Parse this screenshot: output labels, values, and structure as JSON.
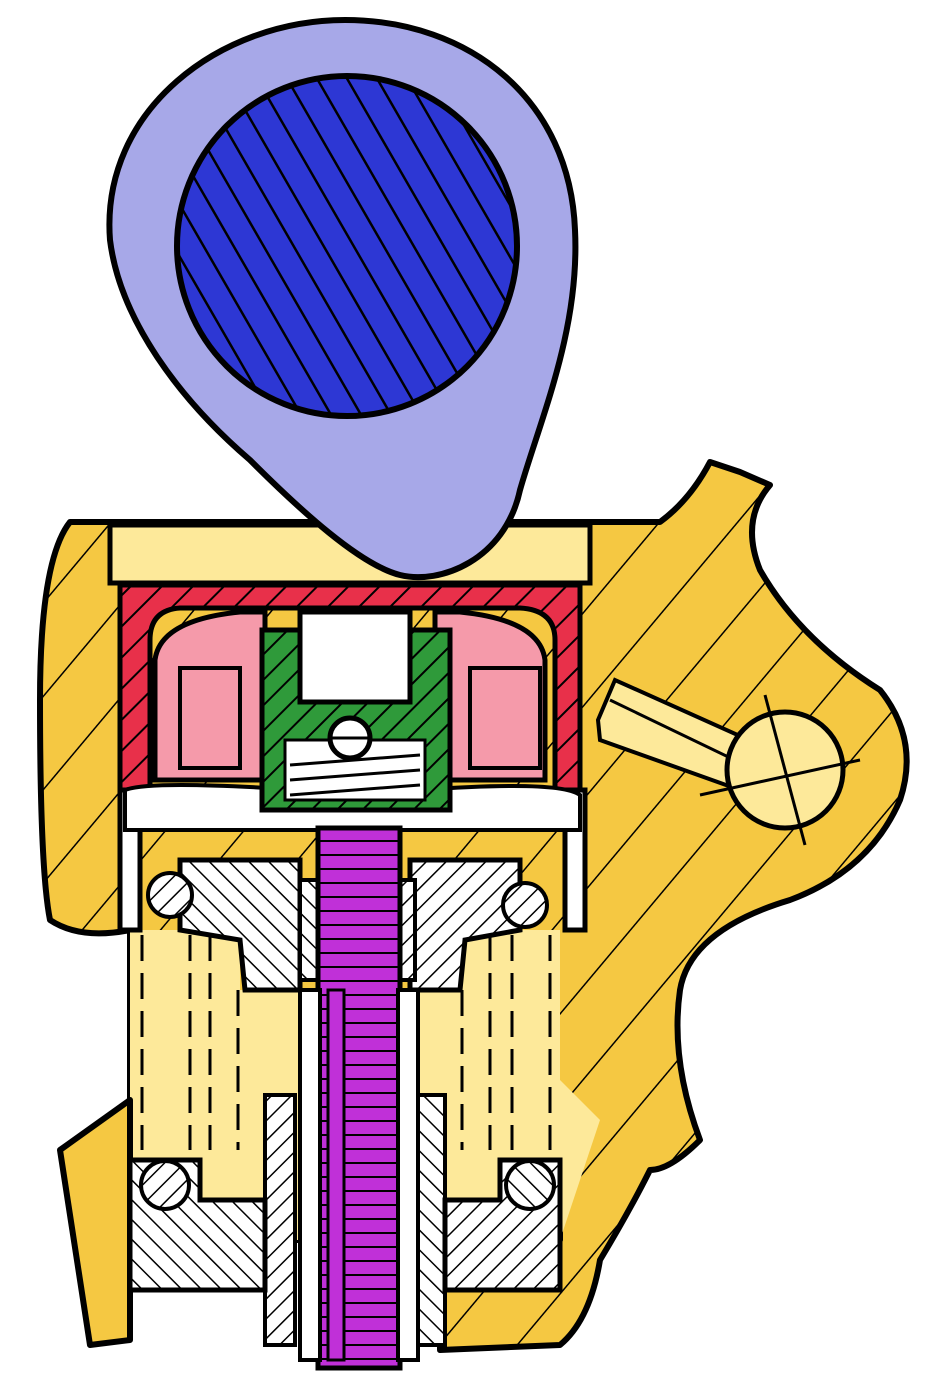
{
  "diagram": {
    "kind": "cutaway cross-section, cam follower with hydraulic tappet",
    "labels": [],
    "colors": {
      "housing": "#f5c842",
      "housing_light": "#fde99a",
      "cam": "#a7a8e8",
      "camshaft": "#2d37d4",
      "tappet_body": "#e8304a",
      "tappet_inner": "#f59aaa",
      "plunger": "#2f9a3a",
      "valve_stem": "#c030d8",
      "guide": "#ffffff",
      "outline": "#000000"
    },
    "parts": [
      "engine-head-housing",
      "cam-lobe",
      "camshaft",
      "hydraulic-tappet-bucket",
      "tappet-inner-chamber",
      "plunger",
      "check-ball",
      "valve-spring-retainer",
      "valve-cotters",
      "valve-springs",
      "valve-stem",
      "valve-guide",
      "spring-seat",
      "oil-gallery-drilling",
      "oil-plug"
    ]
  }
}
